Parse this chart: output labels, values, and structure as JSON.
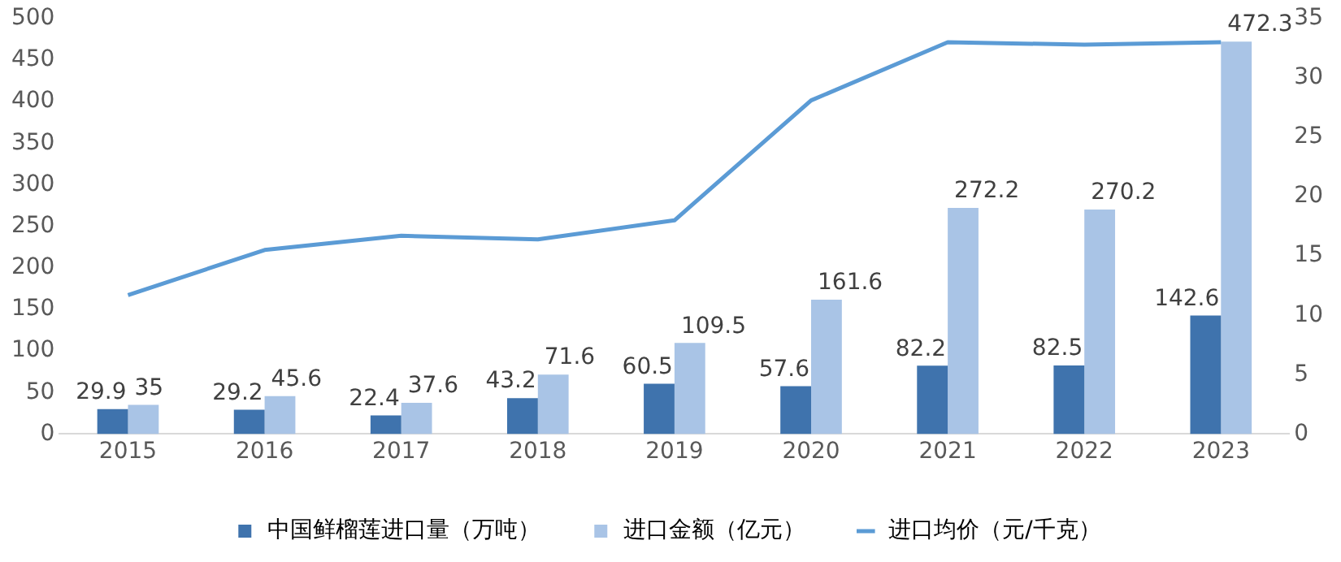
{
  "chart_data": {
    "type": "bar",
    "categories": [
      "2015",
      "2016",
      "2017",
      "2018",
      "2019",
      "2020",
      "2021",
      "2022",
      "2023"
    ],
    "series": [
      {
        "name": "中国鲜榴莲进口量（万吨）",
        "color": "#3f73ad",
        "values": [
          29.9,
          29.2,
          22.4,
          43.2,
          60.5,
          57.6,
          82.2,
          82.5,
          142.6
        ],
        "value_labels": [
          "29.9",
          "29.2",
          "22.4",
          "43.2",
          "60.5",
          "57.6",
          "82.2",
          "82.5",
          "142.6"
        ]
      },
      {
        "name": "进口金额（亿元）",
        "color": "#a9c4e6",
        "values": [
          35,
          45.6,
          37.6,
          71.6,
          109.5,
          161.6,
          272.2,
          270.2,
          472.3
        ],
        "value_labels": [
          "35",
          "45.6",
          "37.6",
          "71.6",
          "109.5",
          "161.6",
          "272.2",
          "270.2",
          "472.3"
        ]
      },
      {
        "name": "进口均价（元/千克）",
        "type": "line",
        "axis": "y2",
        "color": "#5b9bd5",
        "values": [
          11.7,
          15.5,
          16.7,
          16.4,
          18.0,
          28.1,
          33.0,
          32.8,
          33.0
        ]
      }
    ],
    "ylim": [
      0,
      500
    ],
    "yticks": [
      0,
      50,
      100,
      150,
      200,
      250,
      300,
      350,
      400,
      450,
      500
    ],
    "y2lim": [
      0,
      35
    ],
    "y2ticks": [
      0,
      5,
      10,
      15,
      20,
      25,
      30,
      35
    ],
    "grid": false,
    "legend": "bottom",
    "marker": "none",
    "line_style": "solid"
  }
}
